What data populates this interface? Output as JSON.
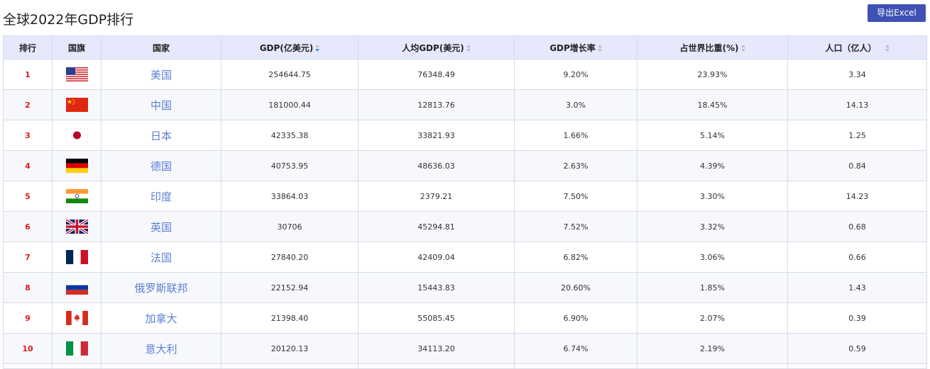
{
  "page": {
    "title": "全球2022年GDP排行",
    "export_label": "导出Excel"
  },
  "table": {
    "headers": [
      "排行",
      "国旗",
      "国家",
      "GDP(亿美元)",
      "人均GDP(美元)",
      "GDP增长率",
      "占世界比重(%)",
      "人口（亿人）"
    ],
    "sort": {
      "column": "GDP(亿美元)",
      "direction": "desc"
    },
    "rows": [
      {
        "rank": "1",
        "flag": "us-flag-icon",
        "country": "美国",
        "gdp": "254644.75",
        "gdp_per_capita": "76348.49",
        "growth": "9.20%",
        "share": "23.93%",
        "population": "3.34"
      },
      {
        "rank": "2",
        "flag": "cn-flag-icon",
        "country": "中国",
        "gdp": "181000.44",
        "gdp_per_capita": "12813.76",
        "growth": "3.0%",
        "share": "18.45%",
        "population": "14.13"
      },
      {
        "rank": "3",
        "flag": "jp-flag-icon",
        "country": "日本",
        "gdp": "42335.38",
        "gdp_per_capita": "33821.93",
        "growth": "1.66%",
        "share": "5.14%",
        "population": "1.25"
      },
      {
        "rank": "4",
        "flag": "de-flag-icon",
        "country": "德国",
        "gdp": "40753.95",
        "gdp_per_capita": "48636.03",
        "growth": "2.63%",
        "share": "4.39%",
        "population": "0.84"
      },
      {
        "rank": "5",
        "flag": "in-flag-icon",
        "country": "印度",
        "gdp": "33864.03",
        "gdp_per_capita": "2379.21",
        "growth": "7.50%",
        "share": "3.30%",
        "population": "14.23"
      },
      {
        "rank": "6",
        "flag": "gb-flag-icon",
        "country": "英国",
        "gdp": "30706",
        "gdp_per_capita": "45294.81",
        "growth": "7.52%",
        "share": "3.32%",
        "population": "0.68"
      },
      {
        "rank": "7",
        "flag": "fr-flag-icon",
        "country": "法国",
        "gdp": "27840.20",
        "gdp_per_capita": "42409.04",
        "growth": "6.82%",
        "share": "3.06%",
        "population": "0.66"
      },
      {
        "rank": "8",
        "flag": "ru-flag-icon",
        "country": "俄罗斯联邦",
        "gdp": "22152.94",
        "gdp_per_capita": "15443.83",
        "growth": "20.60%",
        "share": "1.85%",
        "population": "1.43"
      },
      {
        "rank": "9",
        "flag": "ca-flag-icon",
        "country": "加拿大",
        "gdp": "21398.40",
        "gdp_per_capita": "55085.45",
        "growth": "6.90%",
        "share": "2.07%",
        "population": "0.39"
      },
      {
        "rank": "10",
        "flag": "it-flag-icon",
        "country": "意大利",
        "gdp": "20120.13",
        "gdp_per_capita": "34113.20",
        "growth": "6.74%",
        "share": "2.19%",
        "population": "0.59"
      }
    ]
  },
  "colors": {
    "accent": "#3f51b5",
    "header_bg": "#e6e9fb",
    "rank_red": "#e01b1b",
    "country_link": "#5b7fd1",
    "sort_active": "#3a8ee6"
  }
}
